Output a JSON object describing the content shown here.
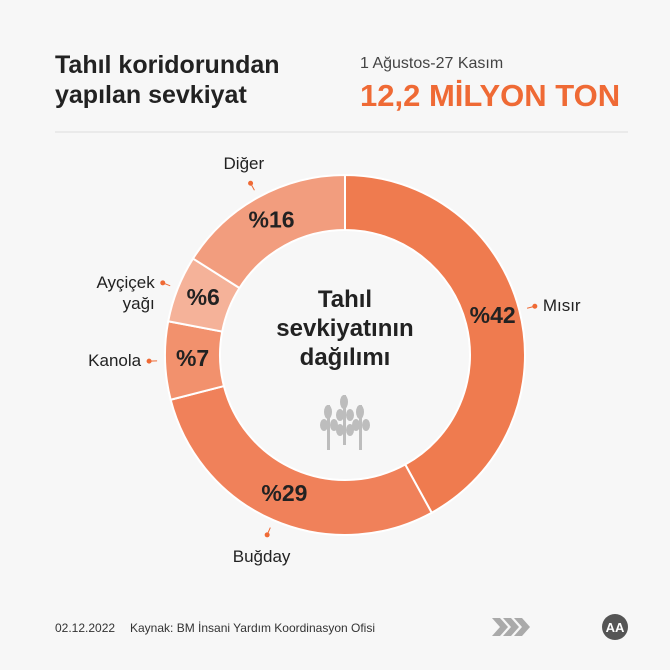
{
  "chart_data": {
    "type": "pie",
    "donut": true,
    "title": "Tahıl koridorundan yapılan sevkiyat",
    "subtitle": "1 Ağustos-27 Kasım",
    "headline": "12,2 MİLYON TON",
    "center_label": "Tahıl sevkiyatının dağılımı",
    "categories": [
      "Mısır",
      "Buğday",
      "Kanola",
      "Ayçiçek yağı",
      "Diğer"
    ],
    "values": [
      42,
      29,
      7,
      6,
      16
    ],
    "value_labels": [
      "%42",
      "%29",
      "%7",
      "%6",
      "%16"
    ],
    "colors": [
      "#ef7b4f",
      "#f0815a",
      "#f2916d",
      "#f5b299",
      "#f29d7e"
    ],
    "date": "02.12.2022",
    "source": "Kaynak: BM İnsani Yardım Koordinasyon Ofisi"
  }
}
